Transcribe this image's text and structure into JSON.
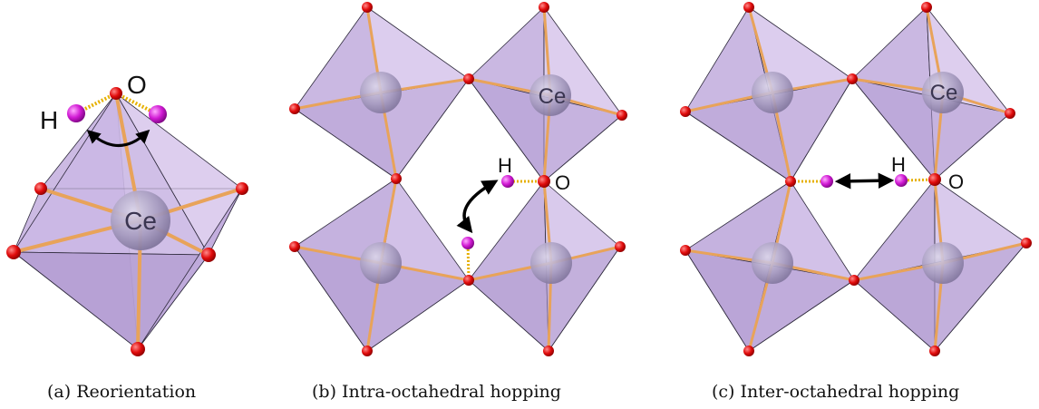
{
  "panels": [
    {
      "id": "a",
      "caption": "(a) Reorientation",
      "atom_labels": {
        "hydrogen": "H",
        "oxygen": "O",
        "cerium": "Ce"
      },
      "arrow": "curved-double-headed"
    },
    {
      "id": "b",
      "caption": "(b) Intra-octahedral hopping",
      "atom_labels": {
        "hydrogen": "H",
        "oxygen": "O",
        "cerium": "Ce"
      },
      "arrow": "curved-double-headed"
    },
    {
      "id": "c",
      "caption": "(c) Inter-octahedral hopping",
      "atom_labels": {
        "hydrogen": "H",
        "oxygen": "O",
        "cerium": "Ce"
      },
      "arrow": "straight-double-headed"
    }
  ],
  "colors": {
    "face_light": "#d7c6ea",
    "face_mid": "#c3aede",
    "face_dark": "#ab95cc",
    "edge": "#2e2a3c",
    "bond": "#e8a35a",
    "oxygen": "#e10c0c",
    "hydrogen": "#d11ad4",
    "cerium": "#a79cc0",
    "hbond": "#e6b000",
    "arrow": "#000000"
  }
}
